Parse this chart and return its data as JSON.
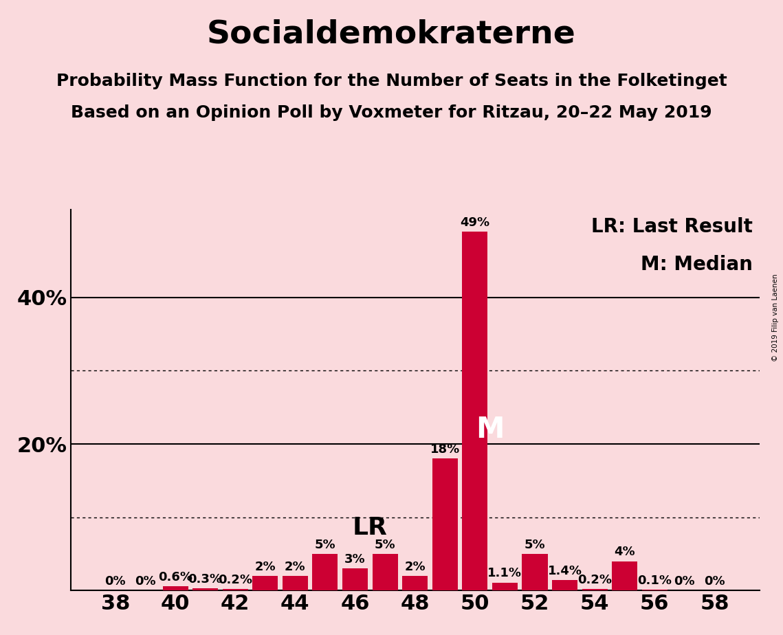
{
  "title": "Socialdemokraterne",
  "subtitle1": "Probability Mass Function for the Number of Seats in the Folketinget",
  "subtitle2": "Based on an Opinion Poll by Voxmeter for Ritzau, 20–22 May 2019",
  "copyright": "© 2019 Filip van Laenen",
  "legend_lr": "LR: Last Result",
  "legend_m": "M: Median",
  "background_color": "#fadadd",
  "bar_color": "#cc0033",
  "seats": [
    38,
    39,
    40,
    41,
    42,
    43,
    44,
    45,
    46,
    47,
    48,
    49,
    50,
    51,
    52,
    53,
    54,
    55,
    56,
    57,
    58
  ],
  "probabilities": [
    0.0,
    0.0,
    0.6,
    0.3,
    0.2,
    2.0,
    2.0,
    5.0,
    3.0,
    5.0,
    2.0,
    18.0,
    49.0,
    1.1,
    5.0,
    1.4,
    0.2,
    4.0,
    0.1,
    0.0,
    0.0
  ],
  "labels": [
    "0%",
    "0%",
    "0.6%",
    "0.3%",
    "0.2%",
    "2%",
    "2%",
    "5%",
    "3%",
    "5%",
    "2%",
    "18%",
    "49%",
    "1.1%",
    "5%",
    "1.4%",
    "0.2%",
    "4%",
    "0.1%",
    "0%",
    "0%"
  ],
  "lr_seat": 47,
  "median_seat": 50,
  "ylim_max": 52,
  "solid_yticks": [
    20,
    40
  ],
  "dotted_yticks": [
    10,
    30
  ],
  "ytick_positions": [
    0,
    20,
    40
  ],
  "ytick_labels": [
    "",
    "20%",
    "40%"
  ],
  "xtick_positions": [
    38,
    40,
    42,
    44,
    46,
    48,
    50,
    52,
    54,
    56,
    58
  ],
  "xlim": [
    36.5,
    59.5
  ],
  "title_fontsize": 34,
  "subtitle_fontsize": 18,
  "bar_label_fontsize": 13,
  "legend_fontsize": 20,
  "ytick_fontsize": 22,
  "xtick_fontsize": 22,
  "lr_label_fontsize": 26,
  "m_label_fontsize": 30
}
